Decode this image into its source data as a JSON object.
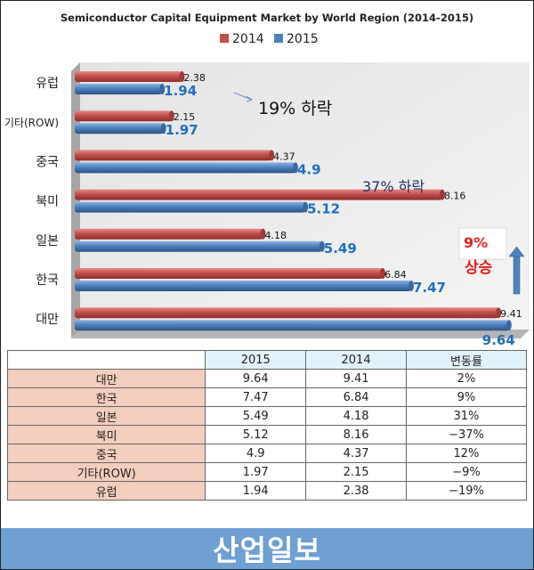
{
  "chart_data": {
    "type": "bar",
    "orientation": "horizontal",
    "title": "Semiconductor Capital Equipment Market by World Region (2014-2015)",
    "legend_position": "top",
    "categories": [
      "유럽",
      "기타(ROW)",
      "중국",
      "북미",
      "일본",
      "한국",
      "대만"
    ],
    "series": [
      {
        "name": "2014",
        "color": "#c0504d",
        "values": [
          2.38,
          2.15,
          4.37,
          8.16,
          4.18,
          6.84,
          9.41
        ]
      },
      {
        "name": "2015",
        "color": "#4f81bd",
        "values": [
          1.94,
          1.97,
          4.9,
          5.12,
          5.49,
          7.47,
          9.64
        ]
      }
    ],
    "value_labels": {
      "2014": [
        "2.38",
        "2.15",
        "4.37",
        "8.16",
        "4.18",
        "6.84",
        "9.41"
      ],
      "2015": [
        "1.94",
        "1.97",
        "4.9",
        "5.12",
        "5.49",
        "7.47",
        "9.64"
      ]
    },
    "xlim": [
      0,
      10
    ],
    "grid": false,
    "annotations": {
      "europe_drop": "19% 하락",
      "na_drop": "37% 하락",
      "korea_rise_pct": "9%",
      "korea_rise_word": "상승"
    }
  },
  "table": {
    "headers": [
      "",
      "2015",
      "2014",
      "변동률"
    ],
    "rows": [
      [
        "대만",
        "9.64",
        "9.41",
        "2%"
      ],
      [
        "한국",
        "7.47",
        "6.84",
        "9%"
      ],
      [
        "일본",
        "5.49",
        "4.18",
        "31%"
      ],
      [
        "북미",
        "5.12",
        "8.16",
        "−37%"
      ],
      [
        "중국",
        "4.9",
        "4.37",
        "12%"
      ],
      [
        "기타(ROW)",
        "1.97",
        "2.15",
        "−9%"
      ],
      [
        "유럽",
        "1.94",
        "2.38",
        "−19%"
      ]
    ]
  },
  "footer": {
    "logo_text": "산업일보",
    "color": "#6f9fd3"
  }
}
